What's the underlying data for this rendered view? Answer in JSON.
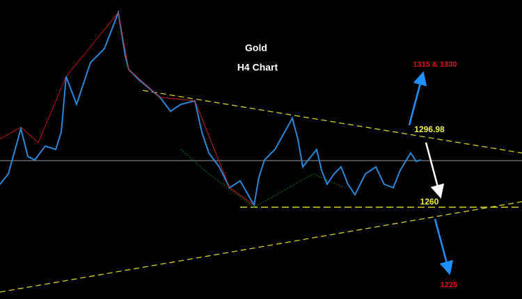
{
  "title": "Gold",
  "subtitle": "H4 Chart",
  "annotations": [
    {
      "text": "1315 & 1330"
    },
    {
      "text": "1296.98"
    },
    {
      "text": "1260"
    },
    {
      "text": "1225"
    }
  ]
}
